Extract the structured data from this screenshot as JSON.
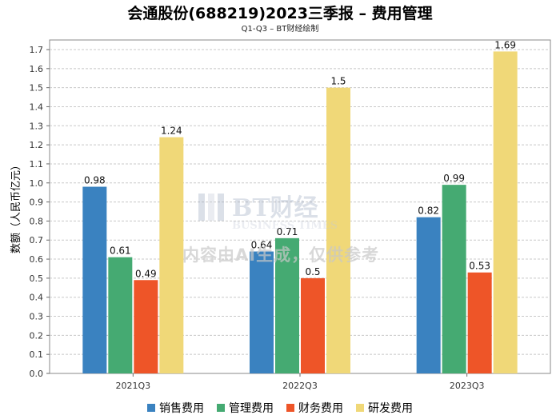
{
  "title": "会通股份(688219)2023三季报 – 费用管理",
  "subtitle": "Q1-Q3 – BT财经绘制",
  "watermark": {
    "logo_text": "BT财经",
    "logo_subtext": "BUSINESS TIMES",
    "text": "内容由AI生成，仅供参考"
  },
  "chart_data": {
    "type": "bar",
    "title": "会通股份(688219)2023三季报 – 费用管理",
    "subtitle": "Q1-Q3 – BT财经绘制",
    "xlabel": "",
    "ylabel": "数额（人民币亿元）",
    "categories": [
      "2021Q3",
      "2022Q3",
      "2023Q3"
    ],
    "ylim": [
      0,
      1.7
    ],
    "yticks": [
      "0.0",
      "0.1",
      "0.2",
      "0.3",
      "0.4",
      "0.5",
      "0.6",
      "0.7",
      "0.8",
      "0.9",
      "1.0",
      "1.1",
      "1.2",
      "1.3",
      "1.4",
      "1.5",
      "1.6",
      "1.7"
    ],
    "grid": true,
    "legend_position": "bottom",
    "series": [
      {
        "name": "销售费用",
        "color": "#3a82c0",
        "values": [
          0.98,
          0.64,
          0.82
        ],
        "labels": [
          "0.98",
          "0.64",
          "0.82"
        ]
      },
      {
        "name": "管理费用",
        "color": "#45aa72",
        "values": [
          0.61,
          0.71,
          0.99
        ],
        "labels": [
          "0.61",
          "0.71",
          "0.99"
        ]
      },
      {
        "name": "财务费用",
        "color": "#ee5528",
        "values": [
          0.49,
          0.5,
          0.53
        ],
        "labels": [
          "0.49",
          "0.5",
          "0.53"
        ]
      },
      {
        "name": "研发费用",
        "color": "#f0d878",
        "values": [
          1.24,
          1.5,
          1.69
        ],
        "labels": [
          "1.24",
          "1.5",
          "1.69"
        ]
      }
    ]
  }
}
